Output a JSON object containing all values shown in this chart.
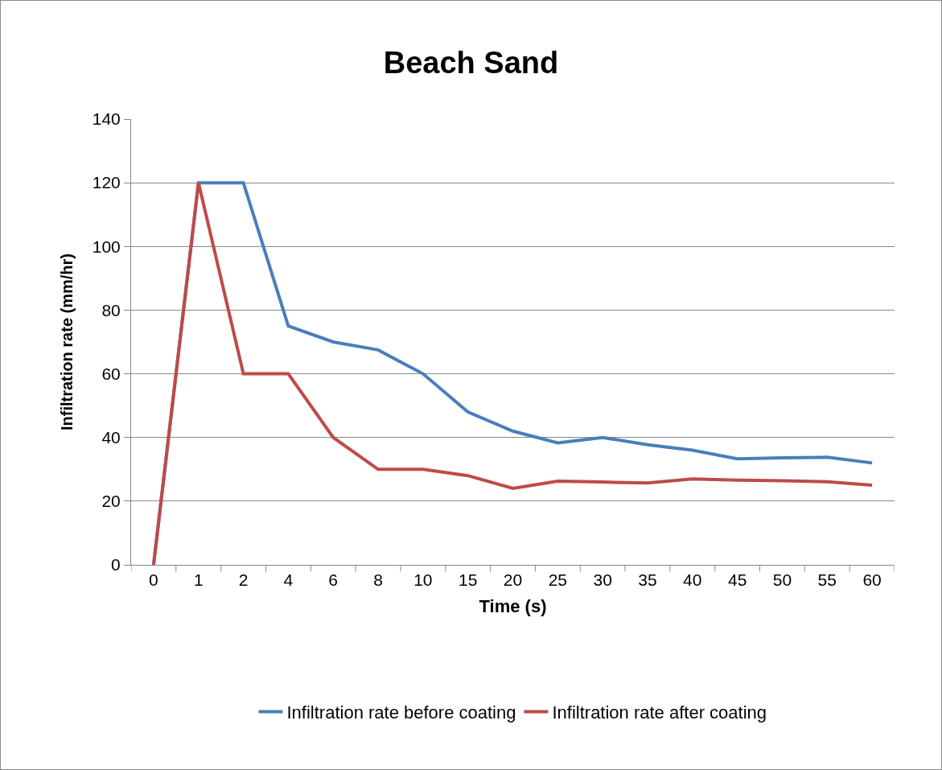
{
  "chart_data": {
    "type": "line",
    "title": "Beach Sand",
    "xlabel": "Time (s)",
    "ylabel": "Infiltration rate (mm/hr)",
    "categories": [
      "0",
      "1",
      "2",
      "4",
      "6",
      "8",
      "10",
      "15",
      "20",
      "25",
      "30",
      "35",
      "40",
      "45",
      "50",
      "55",
      "60"
    ],
    "series": [
      {
        "name": "Infiltration rate before coating",
        "color": "#4a7ebb",
        "values": [
          0,
          120,
          120,
          75,
          70,
          67.5,
          60,
          48,
          42,
          38.3,
          40,
          37.7,
          36,
          33.3,
          33.6,
          33.8,
          32
        ]
      },
      {
        "name": "Infiltration rate after coating",
        "color": "#be4b48",
        "values": [
          0,
          120,
          60,
          60,
          40,
          30,
          30,
          28,
          24,
          26.3,
          26,
          25.7,
          27,
          26.6,
          26.4,
          26.1,
          25
        ]
      }
    ],
    "ylim": [
      0,
      140
    ],
    "yticks": [
      0,
      20,
      40,
      60,
      80,
      100,
      120,
      140
    ],
    "grid": "y",
    "legend": "bottom",
    "marker": "none",
    "line_style": "solid"
  }
}
